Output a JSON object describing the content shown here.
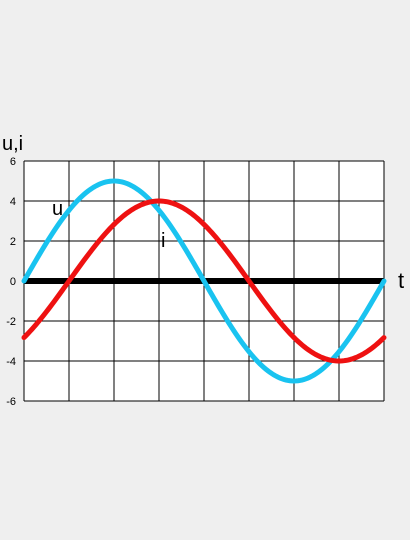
{
  "chart_data": {
    "type": "line",
    "ylabel": "u,i",
    "xlabel": "t",
    "ylim": [
      -6,
      6
    ],
    "yticks": [
      "6",
      "4",
      "2",
      "0",
      "-2",
      "-4",
      "-6"
    ],
    "grid": true,
    "series": [
      {
        "name": "u",
        "color": "#19c3f0",
        "amplitude": 5,
        "phase_deg": 0,
        "x_deg": [
          0,
          45,
          90,
          135,
          180,
          225,
          270,
          315,
          360
        ],
        "values": [
          0,
          3.54,
          5,
          3.54,
          0,
          -3.54,
          -5,
          -3.54,
          0
        ]
      },
      {
        "name": "i",
        "color": "#ee1111",
        "amplitude": 4,
        "phase_deg": -45,
        "x_deg": [
          0,
          45,
          90,
          135,
          180,
          225,
          270,
          315,
          360
        ],
        "values": [
          -2.83,
          0,
          2.83,
          4,
          2.83,
          0,
          -2.83,
          -4,
          -2.83
        ]
      }
    ],
    "axis_color": "#000000",
    "background": "#ffffff"
  }
}
